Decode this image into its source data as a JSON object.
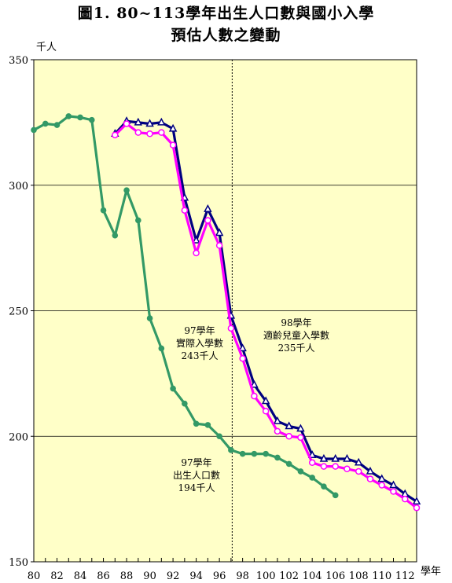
{
  "title_line1": "圖1. 80~113學年出生人口數與國小入學",
  "title_line2": "預估人數之變動",
  "colors": {
    "plot_bg": "#ffffc8",
    "green": "#339966",
    "navy": "#000080",
    "magenta": "#ff00ff",
    "grid": "#000000"
  },
  "chart_data": {
    "type": "line",
    "title": "圖1. 80~113學年出生人口數與國小入學預估人數之變動",
    "ylabel": "千人",
    "xlabel": "學年",
    "ylim": [
      150,
      350
    ],
    "xlim": [
      80,
      113
    ],
    "yticks": [
      150,
      200,
      250,
      300,
      350
    ],
    "xticks": [
      80,
      82,
      84,
      86,
      88,
      90,
      92,
      94,
      96,
      98,
      100,
      102,
      104,
      106,
      108,
      110,
      112
    ],
    "grid": "horizontal",
    "divider_x": 97.1,
    "series": [
      {
        "color": "#339966",
        "marker": "circle",
        "x": [
          80,
          81,
          82,
          83,
          84,
          85,
          86,
          87,
          88,
          89,
          90,
          91,
          92,
          93,
          94,
          95,
          96,
          97,
          98,
          99,
          100,
          101,
          102,
          103,
          104,
          105,
          106
        ],
        "y": [
          322,
          324.5,
          324,
          327.5,
          327,
          326,
          290,
          280,
          298,
          286,
          247,
          235,
          219,
          213,
          205,
          204.5,
          200,
          194.5,
          193,
          193,
          193,
          191.5,
          189,
          186,
          183.5,
          180,
          176.5
        ]
      },
      {
        "color": "#000080",
        "marker": "triangle",
        "x": [
          87,
          88,
          89,
          90,
          91,
          92,
          93,
          94,
          95,
          96,
          97,
          98,
          99,
          100,
          101,
          102,
          103,
          104,
          105,
          106,
          107,
          108,
          109,
          110,
          111,
          112,
          113
        ],
        "y": [
          320.5,
          325.5,
          325,
          324.5,
          325,
          322.5,
          295,
          278,
          290.5,
          281,
          248,
          235,
          220.5,
          214,
          206,
          204,
          203,
          192.5,
          191,
          191,
          191,
          189.5,
          186,
          183,
          180.5,
          177,
          174
        ]
      },
      {
        "color": "#ff00ff",
        "marker": "circle",
        "x": [
          87,
          88,
          89,
          90,
          91,
          92,
          93,
          94,
          95,
          96,
          97,
          98,
          99,
          100,
          101,
          102,
          103,
          104,
          105,
          106,
          107,
          108,
          109,
          110,
          111,
          112,
          113
        ],
        "y": [
          320,
          324.5,
          321,
          320.5,
          321,
          316,
          290,
          273,
          286,
          276,
          243,
          231,
          216,
          210,
          202,
          200,
          199.5,
          189.5,
          188,
          188,
          187,
          186,
          183,
          180.5,
          178,
          175,
          171.5
        ]
      }
    ],
    "annotations": [
      {
        "lines": [
          "97學年",
          "實際入學數",
          "243千人"
        ]
      },
      {
        "lines": [
          "98學年",
          "適齡兒童入學數",
          "235千人"
        ]
      },
      {
        "lines": [
          "97學年",
          "出生人口數",
          "194千人"
        ]
      }
    ]
  }
}
